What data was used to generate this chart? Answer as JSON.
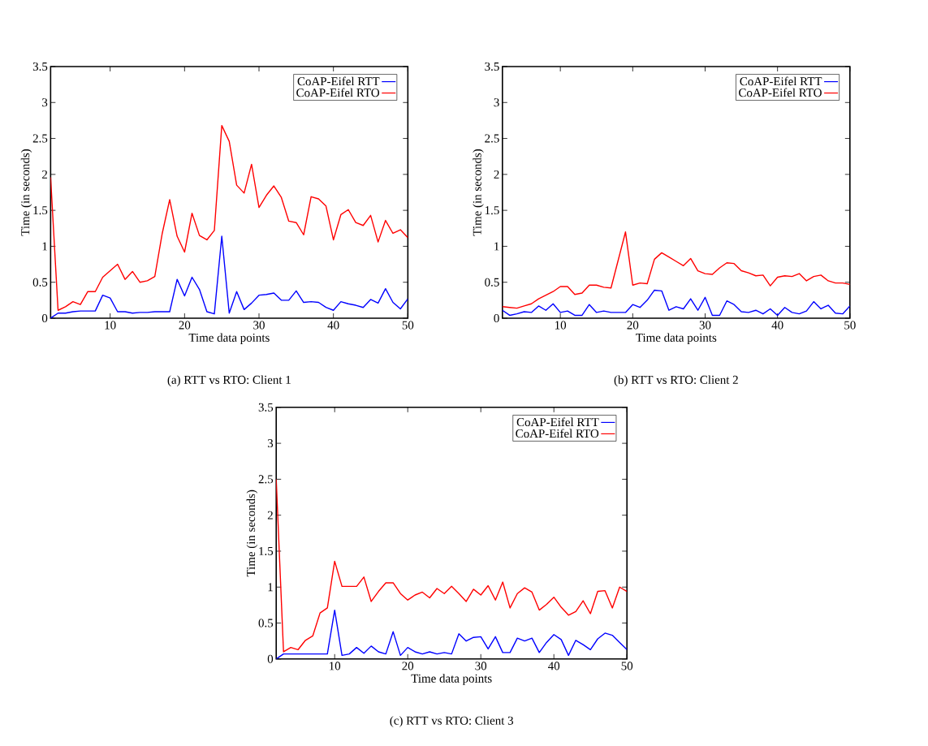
{
  "chart_data": [
    {
      "type": "line",
      "title": "(a) RTT vs RTO: Client 1",
      "xlabel": "Time data points",
      "ylabel": "Time (in seconds)",
      "x": [
        2,
        3,
        4,
        5,
        6,
        7,
        8,
        9,
        10,
        11,
        12,
        13,
        14,
        15,
        16,
        17,
        18,
        19,
        20,
        21,
        22,
        23,
        24,
        25,
        26,
        27,
        28,
        29,
        30,
        31,
        32,
        33,
        34,
        35,
        36,
        37,
        38,
        39,
        40,
        41,
        42,
        43,
        44,
        45,
        46,
        47,
        48,
        49,
        50
      ],
      "xlim": [
        2,
        50
      ],
      "xticks": [
        10,
        20,
        30,
        40,
        50
      ],
      "ylim": [
        0,
        3.5
      ],
      "yticks": [
        0,
        0.5,
        1,
        1.5,
        2,
        2.5,
        3,
        3.5
      ],
      "legend": "top right",
      "series": [
        {
          "name": "CoAP-Eifel RTT",
          "color": "#0000ff",
          "values": [
            0.0,
            0.07,
            0.07,
            0.09,
            0.1,
            0.1,
            0.1,
            0.32,
            0.28,
            0.09,
            0.09,
            0.07,
            0.08,
            0.08,
            0.09,
            0.09,
            0.09,
            0.54,
            0.31,
            0.57,
            0.4,
            0.09,
            0.06,
            1.14,
            0.07,
            0.37,
            0.12,
            0.21,
            0.32,
            0.33,
            0.35,
            0.25,
            0.25,
            0.38,
            0.22,
            0.23,
            0.22,
            0.15,
            0.11,
            0.23,
            0.2,
            0.18,
            0.15,
            0.26,
            0.21,
            0.41,
            0.22,
            0.13,
            0.27
          ]
        },
        {
          "name": "CoAP-Eifel RTO",
          "color": "#ff0000",
          "values": [
            1.96,
            0.11,
            0.16,
            0.23,
            0.19,
            0.37,
            0.37,
            0.57,
            0.66,
            0.75,
            0.54,
            0.65,
            0.5,
            0.52,
            0.58,
            1.18,
            1.65,
            1.14,
            0.92,
            1.46,
            1.15,
            1.09,
            1.22,
            2.68,
            2.46,
            1.85,
            1.74,
            2.14,
            1.54,
            1.71,
            1.84,
            1.68,
            1.35,
            1.33,
            1.16,
            1.69,
            1.66,
            1.56,
            1.09,
            1.44,
            1.51,
            1.33,
            1.29,
            1.43,
            1.06,
            1.36,
            1.18,
            1.23,
            1.12
          ]
        }
      ]
    },
    {
      "type": "line",
      "title": "(b) RTT vs RTO: Client 2",
      "xlabel": "Time data points",
      "ylabel": "Time (in seconds)",
      "x": [
        2,
        3,
        4,
        5,
        6,
        7,
        8,
        9,
        10,
        11,
        12,
        13,
        14,
        15,
        16,
        17,
        18,
        19,
        20,
        21,
        22,
        23,
        24,
        25,
        26,
        27,
        28,
        29,
        30,
        31,
        32,
        33,
        34,
        35,
        36,
        37,
        38,
        39,
        40,
        41,
        42,
        43,
        44,
        45,
        46,
        47,
        48,
        49,
        50
      ],
      "xlim": [
        2,
        50
      ],
      "xticks": [
        10,
        20,
        30,
        40,
        50
      ],
      "ylim": [
        0,
        3.5
      ],
      "yticks": [
        0,
        0.5,
        1,
        1.5,
        2,
        2.5,
        3,
        3.5
      ],
      "legend": "top right",
      "series": [
        {
          "name": "CoAP-Eifel RTT",
          "color": "#0000ff",
          "values": [
            0.11,
            0.04,
            0.06,
            0.09,
            0.08,
            0.17,
            0.11,
            0.2,
            0.08,
            0.1,
            0.04,
            0.04,
            0.19,
            0.08,
            0.1,
            0.08,
            0.08,
            0.08,
            0.19,
            0.15,
            0.25,
            0.39,
            0.38,
            0.11,
            0.16,
            0.13,
            0.27,
            0.11,
            0.29,
            0.04,
            0.04,
            0.24,
            0.19,
            0.09,
            0.08,
            0.11,
            0.06,
            0.13,
            0.04,
            0.15,
            0.08,
            0.06,
            0.1,
            0.23,
            0.13,
            0.18,
            0.07,
            0.06,
            0.17
          ]
        },
        {
          "name": "CoAP-Eifel RTO",
          "color": "#ff0000",
          "values": [
            0.16,
            0.15,
            0.14,
            0.17,
            0.2,
            0.27,
            0.32,
            0.37,
            0.44,
            0.44,
            0.33,
            0.35,
            0.46,
            0.46,
            0.43,
            0.42,
            0.81,
            1.2,
            0.46,
            0.49,
            0.48,
            0.82,
            0.91,
            0.85,
            0.79,
            0.73,
            0.83,
            0.66,
            0.62,
            0.61,
            0.7,
            0.77,
            0.76,
            0.66,
            0.63,
            0.59,
            0.6,
            0.45,
            0.57,
            0.59,
            0.58,
            0.62,
            0.52,
            0.58,
            0.6,
            0.52,
            0.49,
            0.49,
            0.47
          ]
        }
      ]
    },
    {
      "type": "line",
      "title": "(c) RTT vs RTO: Client 3",
      "xlabel": "Time data points",
      "ylabel": "Time (in seconds)",
      "x": [
        2,
        3,
        4,
        5,
        6,
        7,
        8,
        9,
        10,
        11,
        12,
        13,
        14,
        15,
        16,
        17,
        18,
        19,
        20,
        21,
        22,
        23,
        24,
        25,
        26,
        27,
        28,
        29,
        30,
        31,
        32,
        33,
        34,
        35,
        36,
        37,
        38,
        39,
        40,
        41,
        42,
        43,
        44,
        45,
        46,
        47,
        48,
        49,
        50
      ],
      "xlim": [
        2,
        50
      ],
      "xticks": [
        10,
        20,
        30,
        40,
        50
      ],
      "ylim": [
        0,
        3.5
      ],
      "yticks": [
        0,
        0.5,
        1,
        1.5,
        2,
        2.5,
        3,
        3.5
      ],
      "legend": "top right",
      "series": [
        {
          "name": "CoAP-Eifel RTT",
          "color": "#0000ff",
          "values": [
            0.0,
            0.07,
            0.07,
            0.07,
            0.07,
            0.07,
            0.07,
            0.07,
            0.68,
            0.05,
            0.07,
            0.16,
            0.08,
            0.18,
            0.1,
            0.07,
            0.38,
            0.05,
            0.16,
            0.1,
            0.07,
            0.1,
            0.07,
            0.09,
            0.07,
            0.35,
            0.25,
            0.3,
            0.31,
            0.14,
            0.31,
            0.09,
            0.09,
            0.29,
            0.25,
            0.29,
            0.09,
            0.23,
            0.34,
            0.27,
            0.05,
            0.26,
            0.2,
            0.13,
            0.28,
            0.36,
            0.33,
            0.23,
            0.13
          ]
        },
        {
          "name": "CoAP-Eifel RTO",
          "color": "#ff0000",
          "values": [
            2.5,
            0.1,
            0.16,
            0.13,
            0.26,
            0.32,
            0.64,
            0.71,
            1.36,
            1.01,
            1.01,
            1.01,
            1.14,
            0.8,
            0.94,
            1.06,
            1.06,
            0.91,
            0.82,
            0.89,
            0.93,
            0.85,
            0.98,
            0.91,
            1.01,
            0.91,
            0.8,
            0.97,
            0.89,
            1.02,
            0.82,
            1.07,
            0.71,
            0.91,
            0.99,
            0.93,
            0.68,
            0.76,
            0.86,
            0.72,
            0.61,
            0.66,
            0.81,
            0.63,
            0.94,
            0.95,
            0.71,
            1.0,
            0.94
          ]
        }
      ]
    }
  ]
}
